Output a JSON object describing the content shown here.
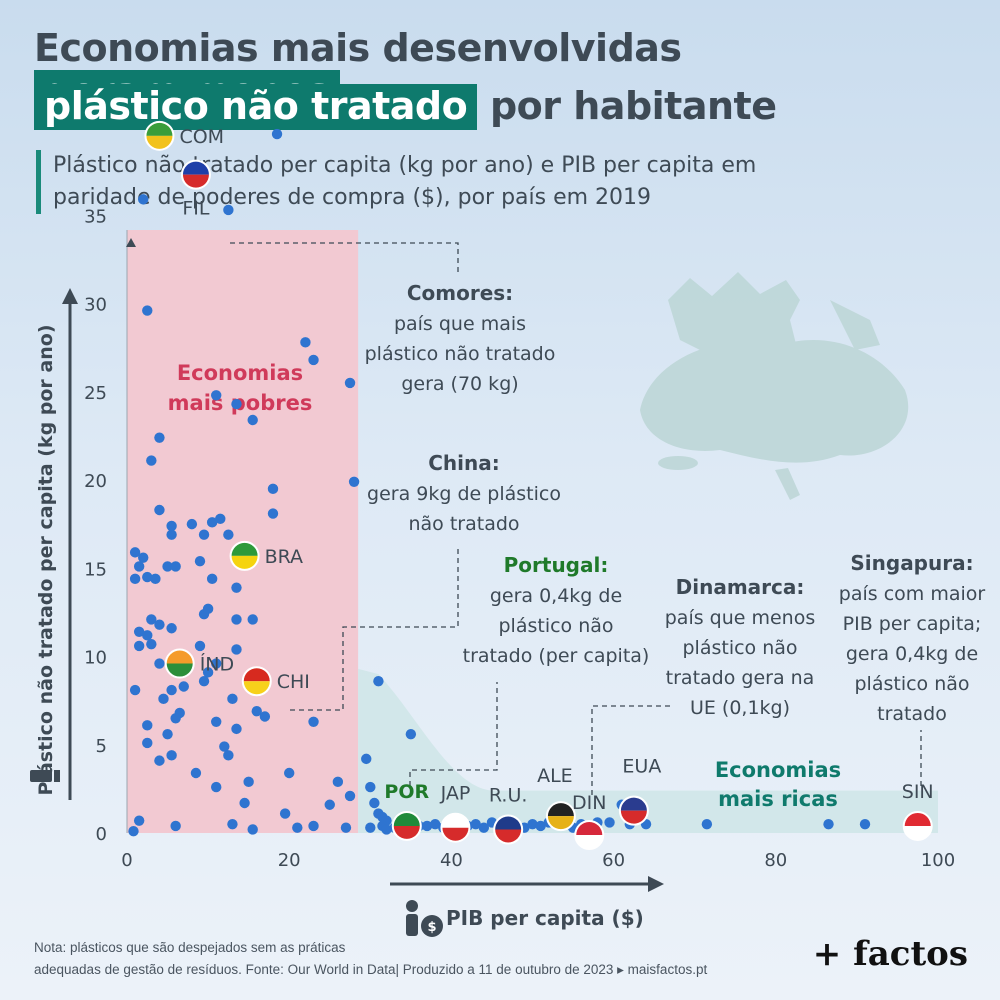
{
  "title": {
    "line1_a": "Economias mais desenvolvidas",
    "line1_b": "geram menos",
    "line2_a": "plástico não tratado",
    "line2_b": "por habitante"
  },
  "subtitle": {
    "line1": "Plástico não tratado per capita (kg por ano) e PIB per capita em",
    "line2": "paridade de poderes de compra ($), por país em 2019"
  },
  "chart_data": {
    "type": "scatter",
    "x_label": "PIB per capita ($)",
    "y_label": "Plástico não tratado per capita (kg por ano)",
    "x_range": [
      0,
      100
    ],
    "y_range": [
      0,
      40
    ],
    "x_ticks": [
      0,
      20,
      40,
      60,
      80,
      100
    ],
    "y_ticks": [
      0,
      5,
      10,
      15,
      20,
      25,
      30,
      35
    ],
    "point_color": "#2f74d0",
    "zones": {
      "poor": {
        "label_1": "Economias",
        "label_2": "mais pobres",
        "color": "#f2c9d2",
        "x_max": 28.5
      },
      "rich": {
        "label_1": "Economias",
        "label_2": "mais ricas",
        "color": "#cfe6e8"
      }
    },
    "countries": [
      {
        "code": "COM",
        "x": 4,
        "y": 70,
        "shown_y": 39.5,
        "note": "off-scale"
      },
      {
        "code": "FIL",
        "x": 8.5,
        "y": 37.3
      },
      {
        "code": "BRA",
        "x": 14.5,
        "y": 15.7
      },
      {
        "code": "ÍND",
        "x": 6.5,
        "y": 9.6
      },
      {
        "code": "CHI",
        "x": 16,
        "y": 8.6
      },
      {
        "code": "POR",
        "x": 34.5,
        "y": 0.4
      },
      {
        "code": "JAP",
        "x": 40.5,
        "y": 0.3
      },
      {
        "code": "R.U.",
        "x": 47,
        "y": 0.2
      },
      {
        "code": "ALE",
        "x": 53.5,
        "y": 0.5
      },
      {
        "code": "DIN",
        "x": 57,
        "y": 0.1
      },
      {
        "code": "EUA",
        "x": 62.5,
        "y": 0.7
      },
      {
        "code": "SIN",
        "x": 97.5,
        "y": 0.4
      }
    ],
    "points": [
      [
        18.5,
        39.6
      ],
      [
        2,
        35.9
      ],
      [
        12.5,
        35.3
      ],
      [
        2.5,
        29.6
      ],
      [
        22,
        27.8
      ],
      [
        23,
        26.8
      ],
      [
        27.5,
        25.5
      ],
      [
        11,
        24.8
      ],
      [
        13.5,
        24.3
      ],
      [
        15.5,
        23.4
      ],
      [
        4,
        22.4
      ],
      [
        3,
        21.1
      ],
      [
        28,
        19.9
      ],
      [
        18,
        19.5
      ],
      [
        18,
        18.1
      ],
      [
        4,
        18.3
      ],
      [
        5.5,
        17.4
      ],
      [
        8,
        17.5
      ],
      [
        10.5,
        17.6
      ],
      [
        11.5,
        17.8
      ],
      [
        5.5,
        16.9
      ],
      [
        9.5,
        16.9
      ],
      [
        12.5,
        16.9
      ],
      [
        1,
        15.9
      ],
      [
        2,
        15.6
      ],
      [
        1.5,
        15.1
      ],
      [
        5,
        15.1
      ],
      [
        6,
        15.1
      ],
      [
        9,
        15.4
      ],
      [
        1,
        14.4
      ],
      [
        2.5,
        14.5
      ],
      [
        3.5,
        14.4
      ],
      [
        10.5,
        14.4
      ],
      [
        13.5,
        13.9
      ],
      [
        9.5,
        12.4
      ],
      [
        10,
        12.7
      ],
      [
        13.5,
        12.1
      ],
      [
        15.5,
        12.1
      ],
      [
        3,
        12.1
      ],
      [
        4,
        11.8
      ],
      [
        5.5,
        11.6
      ],
      [
        1.5,
        11.4
      ],
      [
        2.5,
        11.2
      ],
      [
        3,
        10.7
      ],
      [
        1.5,
        10.6
      ],
      [
        9,
        10.6
      ],
      [
        4,
        9.6
      ],
      [
        13.5,
        10.4
      ],
      [
        10,
        9.1
      ],
      [
        11,
        9.6
      ],
      [
        9.5,
        8.6
      ],
      [
        7,
        8.3
      ],
      [
        1,
        8.1
      ],
      [
        5.5,
        8.1
      ],
      [
        4.5,
        7.6
      ],
      [
        13,
        7.6
      ],
      [
        6.5,
        6.8
      ],
      [
        6,
        6.5
      ],
      [
        16,
        6.9
      ],
      [
        17,
        6.6
      ],
      [
        11,
        6.3
      ],
      [
        2.5,
        6.1
      ],
      [
        23,
        6.3
      ],
      [
        5,
        5.6
      ],
      [
        13.5,
        5.9
      ],
      [
        2.5,
        5.1
      ],
      [
        12,
        4.9
      ],
      [
        5.5,
        4.4
      ],
      [
        4,
        4.1
      ],
      [
        12.5,
        4.4
      ],
      [
        8.5,
        3.4
      ],
      [
        20,
        3.4
      ],
      [
        15,
        2.9
      ],
      [
        11,
        2.6
      ],
      [
        26,
        2.9
      ],
      [
        27.5,
        2.1
      ],
      [
        14.5,
        1.7
      ],
      [
        25,
        1.6
      ],
      [
        19.5,
        1.1
      ],
      [
        1.5,
        0.7
      ],
      [
        13,
        0.5
      ],
      [
        21,
        0.3
      ],
      [
        23,
        0.4
      ],
      [
        6,
        0.4
      ],
      [
        0.8,
        0.1
      ],
      [
        15.5,
        0.2
      ],
      [
        31,
        8.6
      ],
      [
        35,
        5.6
      ],
      [
        29.5,
        4.2
      ],
      [
        30,
        2.6
      ],
      [
        30.5,
        1.7
      ],
      [
        31,
        1.1
      ],
      [
        31.5,
        0.9
      ],
      [
        32,
        0.7
      ],
      [
        30,
        0.3
      ],
      [
        31.5,
        0.4
      ],
      [
        32,
        0.2
      ],
      [
        33,
        0.3
      ],
      [
        34,
        0.4
      ],
      [
        35.5,
        0.6
      ],
      [
        36,
        0.4
      ],
      [
        37,
        0.4
      ],
      [
        38,
        0.5
      ],
      [
        39,
        0.3
      ],
      [
        39.5,
        0.5
      ],
      [
        41,
        0.4
      ],
      [
        42,
        0.4
      ],
      [
        43,
        0.5
      ],
      [
        44,
        0.3
      ],
      [
        45,
        0.6
      ],
      [
        46,
        0.4
      ],
      [
        48,
        0.4
      ],
      [
        49,
        0.3
      ],
      [
        50,
        0.5
      ],
      [
        51,
        0.4
      ],
      [
        52,
        0.6
      ],
      [
        55,
        0.3
      ],
      [
        56,
        0.5
      ],
      [
        58,
        0.6
      ],
      [
        59.5,
        0.6
      ],
      [
        61,
        1.6
      ],
      [
        62,
        0.5
      ],
      [
        64,
        0.5
      ],
      [
        71.5,
        0.5
      ],
      [
        86.5,
        0.5
      ],
      [
        91,
        0.5
      ],
      [
        27,
        0.3
      ]
    ],
    "annotations": [
      {
        "country": "Comores:",
        "lines": [
          "país que mais",
          "plástico não tratado",
          "gera (70 kg)"
        ]
      },
      {
        "country": "China:",
        "lines": [
          "gera 9kg de plástico",
          "não tratado"
        ]
      },
      {
        "country": "Portugal:",
        "lines": [
          "gera 0,4kg de",
          "plástico não",
          "tratado (per capita)"
        ]
      },
      {
        "country": "Dinamarca:",
        "lines": [
          "país que menos",
          "plástico não",
          "tratado gera na",
          "UE (0,1kg)"
        ]
      },
      {
        "country": "Singapura:",
        "lines": [
          "país com maior",
          "PIB per capita;",
          "gera 0,4kg de",
          "plástico não",
          "tratado"
        ]
      }
    ]
  },
  "footer": {
    "note_line1": "Nota: plásticos que são despejados sem as práticas",
    "note_line2": "adequadas de gestão de resíduos. Fonte: Our World in Data| Produzido a 11 de outubro de 2023 ▸ maisfactos.pt",
    "brand": "+ factos"
  },
  "colors": {
    "title_text": "#3e4a55",
    "highlight": "#0e7a6d",
    "annotation_teal": "#0f7a6c",
    "portugal_green": "#1f7a2a",
    "poor_label": "#d03a5a"
  }
}
